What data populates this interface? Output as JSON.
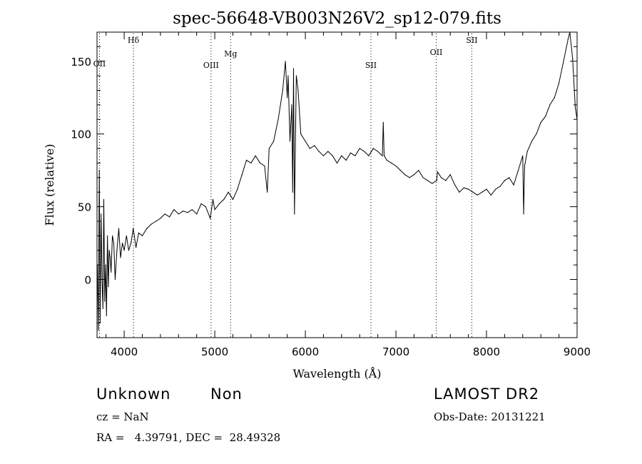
{
  "chart_data": {
    "type": "line",
    "title": "spec-56648-VB003N26V2_sp12-079.fits",
    "xlabel": "Wavelength (Å)",
    "ylabel": "Flux (relative)",
    "xlim": [
      3700,
      9000
    ],
    "ylim": [
      -40,
      170
    ],
    "xticks": [
      4000,
      5000,
      6000,
      7000,
      8000,
      9000
    ],
    "yticks": [
      0,
      50,
      100,
      150
    ],
    "grid": false,
    "line_color": "#000000",
    "marker_color": "#000000",
    "series": [
      {
        "x": [
          3705,
          3715,
          3725,
          3735,
          3745,
          3755,
          3765,
          3775,
          3785,
          3795,
          3805,
          3815,
          3825,
          3835,
          3845,
          3855,
          3870,
          3885,
          3900,
          3920,
          3940,
          3960,
          3980,
          4000,
          4025,
          4050,
          4075,
          4100,
          4130,
          4160,
          4200,
          4250,
          4300,
          4350,
          4400,
          4450,
          4500,
          4550,
          4600,
          4650,
          4700,
          4750,
          4800,
          4850,
          4900,
          4950,
          4980,
          5000,
          5050,
          5100,
          5150,
          5200,
          5250,
          5300,
          5350,
          5400,
          5450,
          5500,
          5550,
          5580,
          5600,
          5650,
          5700,
          5750,
          5780,
          5800,
          5810,
          5830,
          5850,
          5860,
          5870,
          5880,
          5900,
          5920,
          5950,
          6000,
          6050,
          6100,
          6150,
          6200,
          6250,
          6300,
          6350,
          6400,
          6450,
          6500,
          6550,
          6600,
          6650,
          6700,
          6750,
          6800,
          6850,
          6860,
          6870,
          6900,
          6950,
          7000,
          7050,
          7100,
          7150,
          7200,
          7250,
          7300,
          7350,
          7400,
          7450,
          7460,
          7500,
          7550,
          7600,
          7650,
          7700,
          7750,
          7800,
          7850,
          7900,
          7950,
          8000,
          8050,
          8100,
          8150,
          8200,
          8250,
          8300,
          8350,
          8400,
          8410,
          8420,
          8450,
          8500,
          8550,
          8600,
          8650,
          8700,
          8750,
          8800,
          8850,
          8900,
          8920,
          8950,
          8980,
          9000
        ],
        "y": [
          10,
          -35,
          75,
          -30,
          45,
          0,
          -20,
          55,
          -15,
          10,
          -25,
          30,
          -5,
          20,
          15,
          5,
          30,
          25,
          0,
          20,
          35,
          15,
          25,
          20,
          30,
          20,
          25,
          35,
          22,
          32,
          30,
          35,
          38,
          40,
          42,
          45,
          43,
          48,
          45,
          47,
          46,
          48,
          45,
          52,
          50,
          42,
          55,
          48,
          52,
          55,
          60,
          55,
          62,
          72,
          82,
          80,
          85,
          80,
          78,
          60,
          90,
          95,
          110,
          130,
          150,
          125,
          140,
          95,
          120,
          60,
          145,
          45,
          140,
          130,
          100,
          95,
          90,
          92,
          88,
          85,
          88,
          85,
          80,
          85,
          82,
          87,
          85,
          90,
          88,
          85,
          90,
          88,
          85,
          108,
          85,
          82,
          80,
          78,
          75,
          72,
          70,
          72,
          75,
          70,
          68,
          66,
          68,
          74,
          70,
          68,
          72,
          65,
          60,
          63,
          62,
          60,
          58,
          60,
          62,
          58,
          62,
          64,
          68,
          70,
          65,
          75,
          85,
          45,
          78,
          88,
          95,
          100,
          108,
          112,
          120,
          125,
          135,
          150,
          165,
          170,
          152,
          118,
          110
        ]
      }
    ],
    "lines": [
      {
        "label": "OII",
        "x": 3727
      },
      {
        "label": "Hδ",
        "x": 4102
      },
      {
        "label": "OIII",
        "x": 4959
      },
      {
        "label": "Mg",
        "x": 5175
      },
      {
        "label": "SII",
        "x": 6724
      },
      {
        "label": "OII",
        "x": 7445
      },
      {
        "label": "SII",
        "x": 7838
      }
    ]
  },
  "info": {
    "class_label": "Unknown",
    "subclass_label": "Non",
    "survey": "LAMOST DR2",
    "cz": "cz = NaN",
    "obs_date": "Obs-Date: 20131221",
    "radec": "RA =   4.39791, DEC =  28.49328"
  }
}
